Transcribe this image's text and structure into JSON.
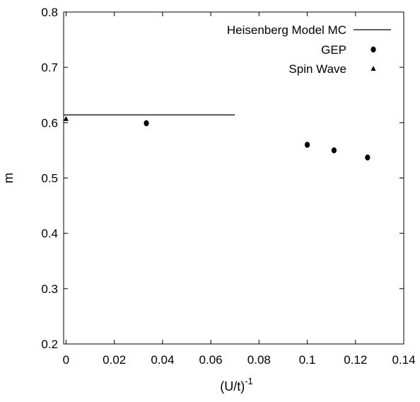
{
  "chart_data": {
    "type": "scatter",
    "title": "",
    "xlabel": "(U/t)",
    "xlabel_superscript": "-1",
    "ylabel": "m",
    "xlim": [
      -0.001,
      0.14
    ],
    "ylim": [
      0.2,
      0.8
    ],
    "x_ticks": [
      0,
      0.02,
      0.04,
      0.06,
      0.08,
      0.1,
      0.12,
      0.14
    ],
    "x_tick_labels": [
      "0",
      "0.02",
      "0.04",
      "0.06",
      "0.08",
      "0.1",
      "0.12",
      "0.14"
    ],
    "y_ticks": [
      0.2,
      0.3,
      0.4,
      0.5,
      0.6,
      0.7,
      0.8
    ],
    "y_tick_labels": [
      "0.2",
      "0.3",
      "0.4",
      "0.5",
      "0.6",
      "0.7",
      "0.8"
    ],
    "grid": false,
    "legend_position": "top-right",
    "series": [
      {
        "name": "Heisenberg Model MC",
        "marker": "line",
        "x": [
          -0.001,
          0.07
        ],
        "y": [
          0.614,
          0.614
        ]
      },
      {
        "name": "GEP",
        "marker": "circle",
        "x": [
          0.0333,
          0.1,
          0.1111,
          0.125
        ],
        "y": [
          0.599,
          0.56,
          0.55,
          0.537
        ]
      },
      {
        "name": "Spin Wave",
        "marker": "triangle",
        "x": [
          0.0
        ],
        "y": [
          0.607
        ]
      }
    ]
  }
}
